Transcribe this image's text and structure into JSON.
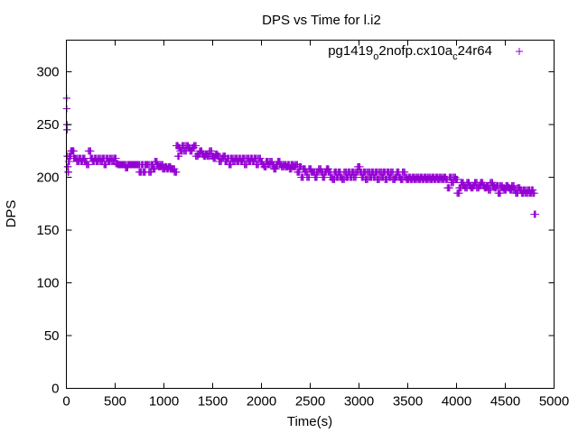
{
  "chart_data": {
    "type": "scatter",
    "title": "DPS vs Time for l.i2",
    "xlabel": "Time(s)",
    "ylabel": "DPS",
    "xlim": [
      0,
      5000
    ],
    "ylim": [
      0,
      330
    ],
    "xticks": [
      0,
      500,
      1000,
      1500,
      2000,
      2500,
      3000,
      3500,
      4000,
      4500,
      5000
    ],
    "yticks": [
      0,
      50,
      100,
      150,
      200,
      250,
      300
    ],
    "grid": false,
    "legend": {
      "position": "top-right",
      "marker": "+"
    },
    "series": [
      {
        "name": "pg1419",
        "name_sub1": "o",
        "name_mid": "2nofp.cx10a",
        "name_sub2": "c",
        "name_end": "24r64",
        "color": "#9400d3",
        "marker": "+",
        "points": [
          [
            2,
            275
          ],
          [
            4,
            265
          ],
          [
            6,
            250
          ],
          [
            8,
            245
          ],
          [
            10,
            220
          ],
          [
            15,
            210
          ],
          [
            20,
            205
          ],
          [
            25,
            215
          ],
          [
            40,
            220
          ],
          [
            55,
            225
          ],
          [
            70,
            225
          ],
          [
            85,
            218
          ],
          [
            100,
            218
          ],
          [
            120,
            215
          ],
          [
            140,
            218
          ],
          [
            160,
            215
          ],
          [
            180,
            218
          ],
          [
            200,
            215
          ],
          [
            220,
            212
          ],
          [
            240,
            225
          ],
          [
            260,
            218
          ],
          [
            280,
            215
          ],
          [
            300,
            218
          ],
          [
            320,
            215
          ],
          [
            340,
            218
          ],
          [
            360,
            215
          ],
          [
            380,
            218
          ],
          [
            400,
            212
          ],
          [
            420,
            218
          ],
          [
            440,
            215
          ],
          [
            460,
            218
          ],
          [
            480,
            215
          ],
          [
            500,
            218
          ],
          [
            520,
            213
          ],
          [
            540,
            212
          ],
          [
            560,
            212
          ],
          [
            580,
            212
          ],
          [
            600,
            212
          ],
          [
            620,
            209
          ],
          [
            640,
            212
          ],
          [
            660,
            212
          ],
          [
            680,
            212
          ],
          [
            700,
            212
          ],
          [
            720,
            212
          ],
          [
            740,
            212
          ],
          [
            760,
            205
          ],
          [
            780,
            212
          ],
          [
            800,
            205
          ],
          [
            820,
            212
          ],
          [
            840,
            212
          ],
          [
            860,
            205
          ],
          [
            880,
            212
          ],
          [
            900,
            208
          ],
          [
            920,
            215
          ],
          [
            940,
            212
          ],
          [
            960,
            210
          ],
          [
            980,
            212
          ],
          [
            1000,
            208
          ],
          [
            1020,
            210
          ],
          [
            1040,
            208
          ],
          [
            1060,
            210
          ],
          [
            1080,
            208
          ],
          [
            1100,
            208
          ],
          [
            1120,
            205
          ],
          [
            1140,
            230
          ],
          [
            1150,
            220
          ],
          [
            1160,
            228
          ],
          [
            1180,
            225
          ],
          [
            1200,
            230
          ],
          [
            1220,
            225
          ],
          [
            1240,
            230
          ],
          [
            1260,
            228
          ],
          [
            1280,
            225
          ],
          [
            1300,
            228
          ],
          [
            1320,
            230
          ],
          [
            1340,
            220
          ],
          [
            1360,
            222
          ],
          [
            1380,
            225
          ],
          [
            1400,
            222
          ],
          [
            1420,
            220
          ],
          [
            1440,
            222
          ],
          [
            1460,
            220
          ],
          [
            1480,
            225
          ],
          [
            1500,
            220
          ],
          [
            1520,
            218
          ],
          [
            1540,
            222
          ],
          [
            1560,
            220
          ],
          [
            1580,
            215
          ],
          [
            1600,
            218
          ],
          [
            1620,
            220
          ],
          [
            1640,
            215
          ],
          [
            1660,
            218
          ],
          [
            1680,
            212
          ],
          [
            1700,
            218
          ],
          [
            1720,
            215
          ],
          [
            1740,
            218
          ],
          [
            1760,
            215
          ],
          [
            1780,
            218
          ],
          [
            1800,
            215
          ],
          [
            1820,
            218
          ],
          [
            1840,
            212
          ],
          [
            1860,
            218
          ],
          [
            1880,
            215
          ],
          [
            1900,
            218
          ],
          [
            1920,
            215
          ],
          [
            1940,
            218
          ],
          [
            1960,
            212
          ],
          [
            1980,
            218
          ],
          [
            2000,
            215
          ],
          [
            2020,
            212
          ],
          [
            2040,
            210
          ],
          [
            2060,
            215
          ],
          [
            2080,
            212
          ],
          [
            2100,
            215
          ],
          [
            2120,
            212
          ],
          [
            2140,
            208
          ],
          [
            2160,
            212
          ],
          [
            2180,
            215
          ],
          [
            2200,
            212
          ],
          [
            2220,
            210
          ],
          [
            2240,
            212
          ],
          [
            2260,
            210
          ],
          [
            2280,
            212
          ],
          [
            2300,
            208
          ],
          [
            2320,
            212
          ],
          [
            2340,
            210
          ],
          [
            2360,
            212
          ],
          [
            2380,
            205
          ],
          [
            2400,
            210
          ],
          [
            2420,
            200
          ],
          [
            2440,
            208
          ],
          [
            2460,
            205
          ],
          [
            2480,
            200
          ],
          [
            2500,
            208
          ],
          [
            2520,
            205
          ],
          [
            2540,
            205
          ],
          [
            2560,
            200
          ],
          [
            2580,
            205
          ],
          [
            2600,
            208
          ],
          [
            2620,
            205
          ],
          [
            2640,
            200
          ],
          [
            2660,
            205
          ],
          [
            2680,
            208
          ],
          [
            2700,
            205
          ],
          [
            2720,
            200
          ],
          [
            2740,
            198
          ],
          [
            2760,
            205
          ],
          [
            2780,
            200
          ],
          [
            2800,
            205
          ],
          [
            2820,
            200
          ],
          [
            2840,
            198
          ],
          [
            2860,
            205
          ],
          [
            2880,
            200
          ],
          [
            2900,
            205
          ],
          [
            2920,
            200
          ],
          [
            2940,
            205
          ],
          [
            2960,
            200
          ],
          [
            2980,
            205
          ],
          [
            3000,
            210
          ],
          [
            3020,
            205
          ],
          [
            3040,
            200
          ],
          [
            3060,
            205
          ],
          [
            3080,
            198
          ],
          [
            3100,
            205
          ],
          [
            3120,
            200
          ],
          [
            3140,
            205
          ],
          [
            3160,
            200
          ],
          [
            3180,
            205
          ],
          [
            3200,
            198
          ],
          [
            3220,
            205
          ],
          [
            3240,
            200
          ],
          [
            3260,
            205
          ],
          [
            3280,
            198
          ],
          [
            3300,
            205
          ],
          [
            3320,
            200
          ],
          [
            3340,
            205
          ],
          [
            3360,
            198
          ],
          [
            3380,
            200
          ],
          [
            3400,
            205
          ],
          [
            3420,
            200
          ],
          [
            3440,
            198
          ],
          [
            3460,
            205
          ],
          [
            3480,
            200
          ],
          [
            3500,
            198
          ],
          [
            3520,
            200
          ],
          [
            3540,
            198
          ],
          [
            3560,
            200
          ],
          [
            3580,
            198
          ],
          [
            3600,
            200
          ],
          [
            3620,
            198
          ],
          [
            3640,
            200
          ],
          [
            3660,
            198
          ],
          [
            3680,
            200
          ],
          [
            3700,
            198
          ],
          [
            3720,
            200
          ],
          [
            3740,
            198
          ],
          [
            3760,
            200
          ],
          [
            3780,
            198
          ],
          [
            3800,
            200
          ],
          [
            3820,
            198
          ],
          [
            3840,
            200
          ],
          [
            3860,
            198
          ],
          [
            3880,
            200
          ],
          [
            3900,
            198
          ],
          [
            3920,
            190
          ],
          [
            3940,
            200
          ],
          [
            3960,
            195
          ],
          [
            3980,
            200
          ],
          [
            4000,
            198
          ],
          [
            4020,
            185
          ],
          [
            4040,
            190
          ],
          [
            4060,
            195
          ],
          [
            4080,
            192
          ],
          [
            4100,
            190
          ],
          [
            4120,
            195
          ],
          [
            4140,
            192
          ],
          [
            4160,
            190
          ],
          [
            4180,
            192
          ],
          [
            4200,
            195
          ],
          [
            4220,
            190
          ],
          [
            4240,
            192
          ],
          [
            4260,
            195
          ],
          [
            4280,
            192
          ],
          [
            4300,
            190
          ],
          [
            4320,
            192
          ],
          [
            4340,
            188
          ],
          [
            4360,
            195
          ],
          [
            4380,
            192
          ],
          [
            4400,
            190
          ],
          [
            4420,
            192
          ],
          [
            4440,
            185
          ],
          [
            4460,
            192
          ],
          [
            4480,
            190
          ],
          [
            4500,
            188
          ],
          [
            4520,
            192
          ],
          [
            4540,
            190
          ],
          [
            4560,
            188
          ],
          [
            4580,
            192
          ],
          [
            4600,
            188
          ],
          [
            4620,
            185
          ],
          [
            4640,
            190
          ],
          [
            4660,
            188
          ],
          [
            4680,
            185
          ],
          [
            4700,
            188
          ],
          [
            4720,
            185
          ],
          [
            4740,
            188
          ],
          [
            4760,
            185
          ],
          [
            4780,
            188
          ],
          [
            4790,
            185
          ],
          [
            4810,
            165
          ]
        ]
      }
    ]
  }
}
